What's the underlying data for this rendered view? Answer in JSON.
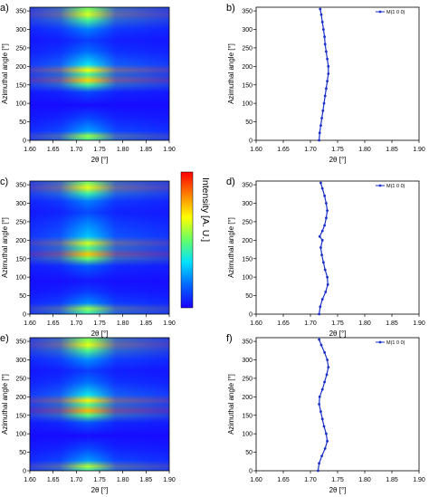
{
  "figure": {
    "colorbar": {
      "label": "Intensity [A. U.]",
      "colors": [
        "#1a00ff",
        "#0066ff",
        "#00e0ff",
        "#66ff66",
        "#ffff00",
        "#ff8000",
        "#ff0000"
      ]
    }
  },
  "chart_data": [
    {
      "panel": "a)",
      "type": "heatmap",
      "xlabel": "2θ [°]",
      "ylabel": "Azimuthal angle [°]",
      "xlim": [
        1.6,
        1.9
      ],
      "ylim": [
        0,
        360
      ],
      "xticks": [
        "1.60",
        "1.65",
        "1.70",
        "1.75",
        "1.80",
        "1.85",
        "1.90"
      ],
      "yticks": [
        "0",
        "50",
        "100",
        "150",
        "200",
        "250",
        "300",
        "350"
      ],
      "peak_center_2theta": 1.725,
      "intensity_bands": [
        {
          "angle": 0,
          "level": 0.45
        },
        {
          "angle": 12,
          "level": 0.55
        },
        {
          "angle": 25,
          "level": 0.25
        },
        {
          "angle": 60,
          "level": 0.12
        },
        {
          "angle": 95,
          "level": 0.02
        },
        {
          "angle": 130,
          "level": 0.12
        },
        {
          "angle": 150,
          "level": 0.45
        },
        {
          "angle": 162,
          "level": 0.72
        },
        {
          "angle": 178,
          "level": 0.45
        },
        {
          "angle": 190,
          "level": 0.66
        },
        {
          "angle": 205,
          "level": 0.35
        },
        {
          "angle": 240,
          "level": 0.18
        },
        {
          "angle": 270,
          "level": 0.1
        },
        {
          "angle": 300,
          "level": 0.2
        },
        {
          "angle": 325,
          "level": 0.45
        },
        {
          "angle": 340,
          "level": 0.62
        },
        {
          "angle": 360,
          "level": 0.5
        }
      ]
    },
    {
      "panel": "b)",
      "type": "line",
      "xlabel": "2θ [°]",
      "ylabel": "Azimuthal angle [°]",
      "xlim": [
        1.6,
        1.9
      ],
      "ylim": [
        0,
        360
      ],
      "xticks": [
        "1.60",
        "1.65",
        "1.70",
        "1.75",
        "1.80",
        "1.85",
        "1.90"
      ],
      "yticks": [
        "0",
        "50",
        "100",
        "150",
        "200",
        "250",
        "300",
        "350"
      ],
      "legend": "top-right",
      "series": [
        {
          "name": "M(1 0 0)",
          "color": "#1a2fc8",
          "points": [
            [
              1.716,
              0
            ],
            [
              1.717,
              20
            ],
            [
              1.719,
              40
            ],
            [
              1.721,
              60
            ],
            [
              1.723,
              80
            ],
            [
              1.725,
              100
            ],
            [
              1.727,
              120
            ],
            [
              1.729,
              140
            ],
            [
              1.731,
              160
            ],
            [
              1.733,
              180
            ],
            [
              1.733,
              200
            ],
            [
              1.731,
              220
            ],
            [
              1.729,
              240
            ],
            [
              1.727,
              260
            ],
            [
              1.726,
              280
            ],
            [
              1.724,
              300
            ],
            [
              1.722,
              320
            ],
            [
              1.72,
              340
            ],
            [
              1.718,
              355
            ]
          ]
        }
      ]
    },
    {
      "panel": "c)",
      "type": "heatmap",
      "xlabel": "2θ [°]",
      "ylabel": "Azimuthal angle [°]",
      "xlim": [
        1.6,
        1.9
      ],
      "ylim": [
        0,
        360
      ],
      "xticks": [
        "1.60",
        "1.65",
        "1.70",
        "1.75",
        "1.80",
        "1.85",
        "1.90"
      ],
      "yticks": [
        "0",
        "50",
        "100",
        "150",
        "200",
        "250",
        "300",
        "350"
      ],
      "peak_center_2theta": 1.725,
      "intensity_bands": [
        {
          "angle": 0,
          "level": 0.4
        },
        {
          "angle": 15,
          "level": 0.55
        },
        {
          "angle": 30,
          "level": 0.22
        },
        {
          "angle": 60,
          "level": 0.1
        },
        {
          "angle": 90,
          "level": 0.04
        },
        {
          "angle": 130,
          "level": 0.15
        },
        {
          "angle": 150,
          "level": 0.5
        },
        {
          "angle": 162,
          "level": 0.74
        },
        {
          "angle": 178,
          "level": 0.45
        },
        {
          "angle": 192,
          "level": 0.62
        },
        {
          "angle": 210,
          "level": 0.3
        },
        {
          "angle": 250,
          "level": 0.2
        },
        {
          "angle": 275,
          "level": 0.12
        },
        {
          "angle": 305,
          "level": 0.2
        },
        {
          "angle": 325,
          "level": 0.42
        },
        {
          "angle": 342,
          "level": 0.64
        },
        {
          "angle": 360,
          "level": 0.48
        }
      ]
    },
    {
      "panel": "d)",
      "type": "line",
      "xlabel": "2θ [°]",
      "ylabel": "Azimuthal angle [°]",
      "xlim": [
        1.6,
        1.9
      ],
      "ylim": [
        0,
        360
      ],
      "xticks": [
        "1.60",
        "1.65",
        "1.70",
        "1.75",
        "1.80",
        "1.85",
        "1.90"
      ],
      "yticks": [
        "0",
        "50",
        "100",
        "150",
        "200",
        "250",
        "300",
        "350"
      ],
      "legend": "top-right",
      "series": [
        {
          "name": "M(1 0 0)",
          "color": "#1a2fc8",
          "points": [
            [
              1.716,
              0
            ],
            [
              1.718,
              20
            ],
            [
              1.722,
              40
            ],
            [
              1.728,
              60
            ],
            [
              1.732,
              80
            ],
            [
              1.731,
              100
            ],
            [
              1.727,
              120
            ],
            [
              1.724,
              140
            ],
            [
              1.721,
              160
            ],
            [
              1.719,
              180
            ],
            [
              1.722,
              200
            ],
            [
              1.717,
              210
            ],
            [
              1.722,
              225
            ],
            [
              1.726,
              240
            ],
            [
              1.729,
              260
            ],
            [
              1.731,
              280
            ],
            [
              1.729,
              300
            ],
            [
              1.726,
              320
            ],
            [
              1.722,
              340
            ],
            [
              1.719,
              355
            ]
          ]
        }
      ]
    },
    {
      "panel": "e)",
      "type": "heatmap",
      "xlabel": "2θ [°]",
      "ylabel": "Azimuthal angle [°]",
      "xlim": [
        1.6,
        1.9
      ],
      "ylim": [
        0,
        360
      ],
      "xticks": [
        "1.60",
        "1.65",
        "1.70",
        "1.75",
        "1.80",
        "1.85",
        "1.90"
      ],
      "yticks": [
        "0",
        "50",
        "100",
        "150",
        "200",
        "250",
        "300",
        "350"
      ],
      "peak_center_2theta": 1.725,
      "intensity_bands": [
        {
          "angle": 0,
          "level": 0.42
        },
        {
          "angle": 12,
          "level": 0.58
        },
        {
          "angle": 28,
          "level": 0.24
        },
        {
          "angle": 60,
          "level": 0.12
        },
        {
          "angle": 95,
          "level": 0.02
        },
        {
          "angle": 130,
          "level": 0.14
        },
        {
          "angle": 150,
          "level": 0.48
        },
        {
          "angle": 162,
          "level": 0.76
        },
        {
          "angle": 178,
          "level": 0.46
        },
        {
          "angle": 190,
          "level": 0.68
        },
        {
          "angle": 205,
          "level": 0.36
        },
        {
          "angle": 240,
          "level": 0.18
        },
        {
          "angle": 270,
          "level": 0.1
        },
        {
          "angle": 300,
          "level": 0.22
        },
        {
          "angle": 325,
          "level": 0.46
        },
        {
          "angle": 340,
          "level": 0.64
        },
        {
          "angle": 360,
          "level": 0.5
        }
      ]
    },
    {
      "panel": "f)",
      "type": "line",
      "xlabel": "2θ [°]",
      "ylabel": "Azimuthal angle [°]",
      "xlim": [
        1.6,
        1.9
      ],
      "ylim": [
        0,
        360
      ],
      "xticks": [
        "1.60",
        "1.65",
        "1.70",
        "1.75",
        "1.80",
        "1.85",
        "1.90"
      ],
      "yticks": [
        "0",
        "50",
        "100",
        "150",
        "200",
        "250",
        "300",
        "350"
      ],
      "legend": "top-right",
      "series": [
        {
          "name": "M(1 0 0)",
          "color": "#1a2fc8",
          "points": [
            [
              1.714,
              0
            ],
            [
              1.716,
              20
            ],
            [
              1.721,
              40
            ],
            [
              1.727,
              60
            ],
            [
              1.731,
              80
            ],
            [
              1.729,
              100
            ],
            [
              1.725,
              120
            ],
            [
              1.722,
              140
            ],
            [
              1.719,
              160
            ],
            [
              1.716,
              180
            ],
            [
              1.717,
              200
            ],
            [
              1.722,
              220
            ],
            [
              1.726,
              240
            ],
            [
              1.73,
              260
            ],
            [
              1.733,
              280
            ],
            [
              1.731,
              300
            ],
            [
              1.726,
              320
            ],
            [
              1.72,
              340
            ],
            [
              1.716,
              355
            ]
          ]
        }
      ]
    }
  ]
}
